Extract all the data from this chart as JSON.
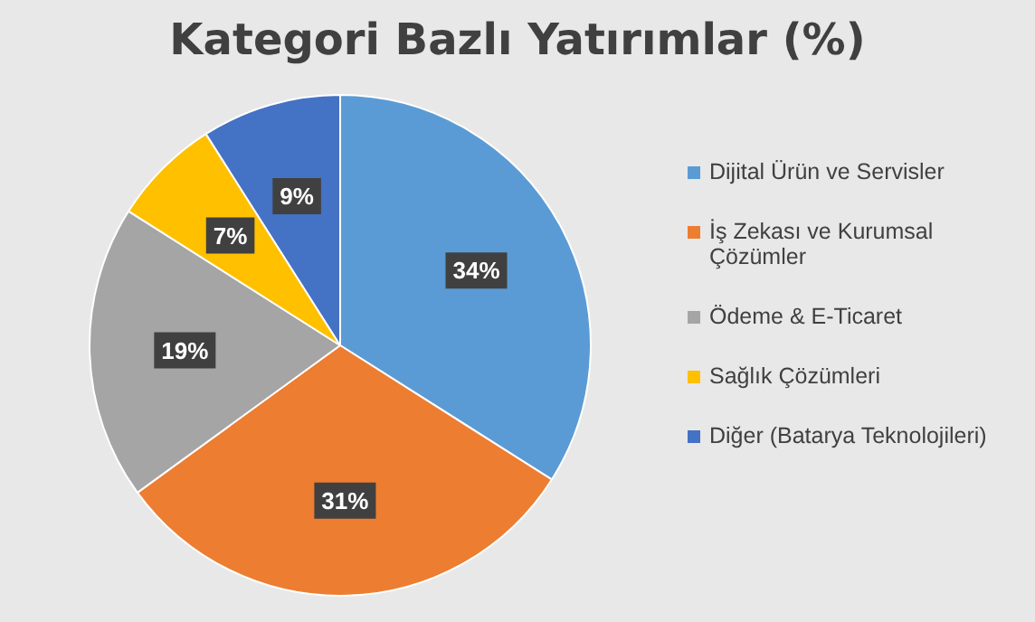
{
  "chart_data": {
    "type": "pie",
    "title": "Kategori Bazlı Yatırımlar (%)",
    "categories": [
      "Dijital Ürün ve Servisler",
      "İş Zekası ve Kurumsal Çözümler",
      "Ödeme & E-Ticaret",
      "Sağlık Çözümleri",
      "Diğer (Batarya Teknolojileri)"
    ],
    "values": [
      34,
      31,
      19,
      7,
      9
    ],
    "colors": [
      "#5b9bd5",
      "#ed7d31",
      "#a5a5a5",
      "#ffc000",
      "#4472c4"
    ],
    "value_labels": [
      "34%",
      "31%",
      "19%",
      "7%",
      "9%"
    ],
    "legend": "right"
  }
}
